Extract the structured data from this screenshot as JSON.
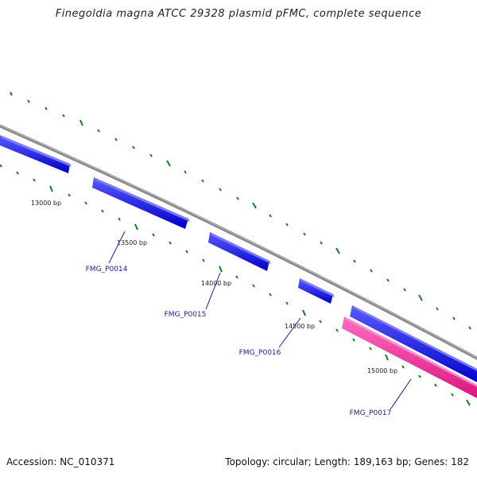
{
  "title": "Finegoldia magna ATCC 29328 plasmid pFMC, complete sequence",
  "footer": {
    "accession": "Accession: NC_010371",
    "topology": "Topology: circular; Length: 189,163 bp; Genes: 182"
  },
  "colors": {
    "backbone": "#8a8a8a",
    "gene_forward": "#0a0ae8",
    "gene_highlight": "#ee1b8c",
    "tick": "#1a7a1a",
    "gene_label": "#1a1aa8",
    "pos_label": "#222222"
  },
  "position_labels": [
    "13000 bp",
    "13500 bp",
    "14000 bp",
    "14500 bp",
    "15000 bp"
  ],
  "gene_labels": [
    "FMG_P0014",
    "FMG_P0015",
    "FMG_P0016",
    "FMG_P0017"
  ]
}
